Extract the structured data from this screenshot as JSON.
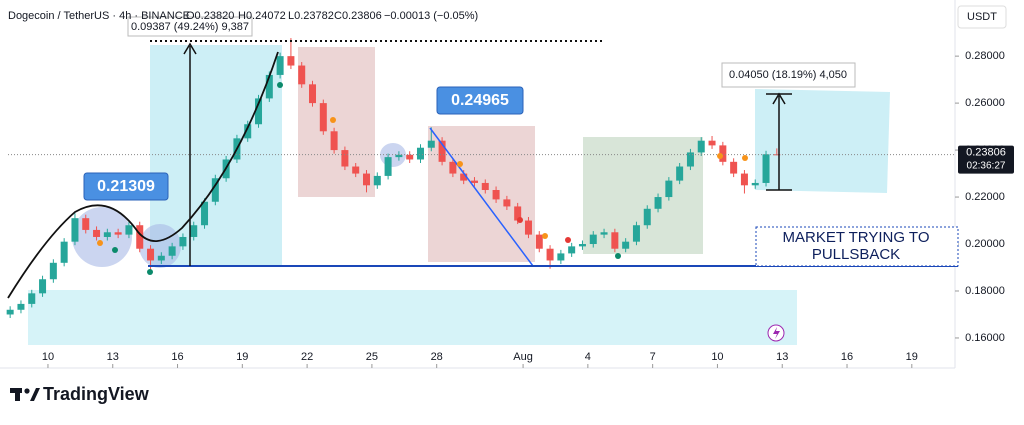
{
  "chart_data": {
    "type": "candlestick",
    "title": "Dogecoin / TetherUS · 4h · BINANCE",
    "ohlc_labels": [
      "O0.23820",
      "H0.24072",
      "L0.23782",
      "C0.23806"
    ],
    "change_label": "−0.00013 (−0.05%)",
    "y_unit": "USDT",
    "last_price": 0.23806,
    "countdown": "02:36:27",
    "branding": "TradingView",
    "up_color": "#26a69a",
    "down_color": "#ef5350",
    "xlim": [
      -1.85,
      42
    ],
    "ylim": [
      0.157,
      0.3005
    ],
    "xticks": [
      {
        "value": 0,
        "label": "10"
      },
      {
        "value": 3,
        "label": "13"
      },
      {
        "value": 6,
        "label": "16"
      },
      {
        "value": 9,
        "label": "19"
      },
      {
        "value": 12,
        "label": "22"
      },
      {
        "value": 15,
        "label": "25"
      },
      {
        "value": 18,
        "label": "28"
      },
      {
        "value": 22,
        "label": "Aug"
      },
      {
        "value": 25,
        "label": "4"
      },
      {
        "value": 28,
        "label": "7"
      },
      {
        "value": 31,
        "label": "10"
      },
      {
        "value": 34,
        "label": "13"
      },
      {
        "value": 37,
        "label": "16"
      },
      {
        "value": 40,
        "label": "19"
      }
    ],
    "yticks": [
      {
        "value": 0.16,
        "label": "0.16000"
      },
      {
        "value": 0.18,
        "label": "0.18000"
      },
      {
        "value": 0.2,
        "label": "0.20000"
      },
      {
        "value": 0.22,
        "label": "0.22000"
      },
      {
        "value": 0.24,
        "label": "0.24000"
      },
      {
        "value": 0.26,
        "label": "0.26000"
      },
      {
        "value": 0.28,
        "label": "0.28000"
      }
    ],
    "x": [
      -1.75,
      -1.25,
      -0.75,
      -0.25,
      0.25,
      0.75,
      1.25,
      1.75,
      2.25,
      2.75,
      3.25,
      3.75,
      4.25,
      4.75,
      5.25,
      5.75,
      6.25,
      6.75,
      7.25,
      7.75,
      8.25,
      8.75,
      9.25,
      9.75,
      10.25,
      10.75,
      11.25,
      11.75,
      12.25,
      12.75,
      13.25,
      13.75,
      14.25,
      14.75,
      15.25,
      15.75,
      16.25,
      16.75,
      17.25,
      17.75,
      18.25,
      18.75,
      19.25,
      19.75,
      20.25,
      20.75,
      21.25,
      21.75,
      22.25,
      22.75,
      23.25,
      23.75,
      24.25,
      24.75,
      25.25,
      25.75,
      26.25,
      26.75,
      27.25,
      27.75,
      28.25,
      28.75,
      29.25,
      29.75,
      30.25,
      30.75,
      31.25,
      31.75,
      32.25,
      32.75,
      33.25,
      33.75
    ],
    "open": [
      0.17,
      0.172,
      0.1745,
      0.179,
      0.185,
      0.192,
      0.201,
      0.211,
      0.206,
      0.203,
      0.205,
      0.204,
      0.208,
      0.198,
      0.193,
      0.195,
      0.199,
      0.203,
      0.208,
      0.218,
      0.228,
      0.236,
      0.245,
      0.251,
      0.262,
      0.272,
      0.28,
      0.276,
      0.268,
      0.26,
      0.248,
      0.24,
      0.233,
      0.23,
      0.225,
      0.229,
      0.237,
      0.238,
      0.236,
      0.241,
      0.244,
      0.235,
      0.23,
      0.227,
      0.226,
      0.223,
      0.219,
      0.216,
      0.21,
      0.204,
      0.198,
      0.193,
      0.196,
      0.199,
      0.2,
      0.204,
      0.205,
      0.198,
      0.201,
      0.208,
      0.215,
      0.22,
      0.227,
      0.233,
      0.239,
      0.244,
      0.242,
      0.235,
      0.23,
      0.225,
      0.226,
      0.2382
    ],
    "high": [
      0.1735,
      0.176,
      0.1805,
      0.1865,
      0.1935,
      0.2025,
      0.2131,
      0.2125,
      0.2075,
      0.2065,
      0.2065,
      0.2095,
      0.2095,
      0.1995,
      0.1965,
      0.2005,
      0.2045,
      0.2095,
      0.2195,
      0.2295,
      0.2375,
      0.2465,
      0.2525,
      0.2635,
      0.2735,
      0.2815,
      0.2877,
      0.2775,
      0.2695,
      0.2615,
      0.2495,
      0.2415,
      0.2345,
      0.2315,
      0.2305,
      0.2385,
      0.2395,
      0.2395,
      0.2425,
      0.2497,
      0.2455,
      0.2365,
      0.2315,
      0.2285,
      0.2275,
      0.2245,
      0.2205,
      0.2175,
      0.2115,
      0.2055,
      0.1995,
      0.1975,
      0.2005,
      0.2015,
      0.2055,
      0.2065,
      0.2065,
      0.2025,
      0.2095,
      0.2165,
      0.2215,
      0.2285,
      0.2345,
      0.2405,
      0.2455,
      0.246,
      0.2435,
      0.2365,
      0.2315,
      0.2275,
      0.2397,
      0.24072
    ],
    "low": [
      0.1685,
      0.1705,
      0.173,
      0.1775,
      0.1835,
      0.1905,
      0.1995,
      0.2045,
      0.2015,
      0.2015,
      0.2025,
      0.2025,
      0.1965,
      0.188,
      0.1915,
      0.1935,
      0.1975,
      0.2015,
      0.2065,
      0.2165,
      0.2265,
      0.2345,
      0.2435,
      0.2495,
      0.2605,
      0.2705,
      0.2745,
      0.2665,
      0.2585,
      0.2465,
      0.2385,
      0.2315,
      0.2285,
      0.222,
      0.2235,
      0.2275,
      0.2355,
      0.2345,
      0.2345,
      0.2395,
      0.2335,
      0.2285,
      0.2255,
      0.2245,
      0.2215,
      0.2175,
      0.2145,
      0.2085,
      0.2025,
      0.1965,
      0.1895,
      0.1915,
      0.1945,
      0.1975,
      0.1985,
      0.2025,
      0.1965,
      0.1965,
      0.1995,
      0.2065,
      0.2135,
      0.2185,
      0.2255,
      0.2315,
      0.2375,
      0.2405,
      0.2335,
      0.2285,
      0.2215,
      0.2235,
      0.2245,
      0.23782
    ],
    "close": [
      0.172,
      0.1745,
      0.179,
      0.185,
      0.192,
      0.201,
      0.211,
      0.206,
      0.203,
      0.205,
      0.204,
      0.208,
      0.198,
      0.193,
      0.195,
      0.199,
      0.203,
      0.208,
      0.218,
      0.228,
      0.236,
      0.245,
      0.251,
      0.262,
      0.272,
      0.28,
      0.276,
      0.268,
      0.26,
      0.248,
      0.24,
      0.233,
      0.23,
      0.225,
      0.229,
      0.237,
      0.238,
      0.236,
      0.241,
      0.244,
      0.235,
      0.23,
      0.227,
      0.226,
      0.223,
      0.219,
      0.216,
      0.21,
      0.204,
      0.198,
      0.193,
      0.196,
      0.199,
      0.2,
      0.204,
      0.205,
      0.198,
      0.201,
      0.208,
      0.215,
      0.22,
      0.227,
      0.233,
      0.239,
      0.244,
      0.242,
      0.235,
      0.23,
      0.225,
      0.226,
      0.2382,
      0.23806
    ],
    "annotations": {
      "low_label": 0.21309,
      "high_label": 0.24965,
      "measure_1": "0.09387 (49.24%) 9,387",
      "measure_2": "0.04050 (18.19%) 4,050",
      "note_lines": [
        "MARKET TRYING TO",
        "PULLSBACK"
      ]
    }
  }
}
